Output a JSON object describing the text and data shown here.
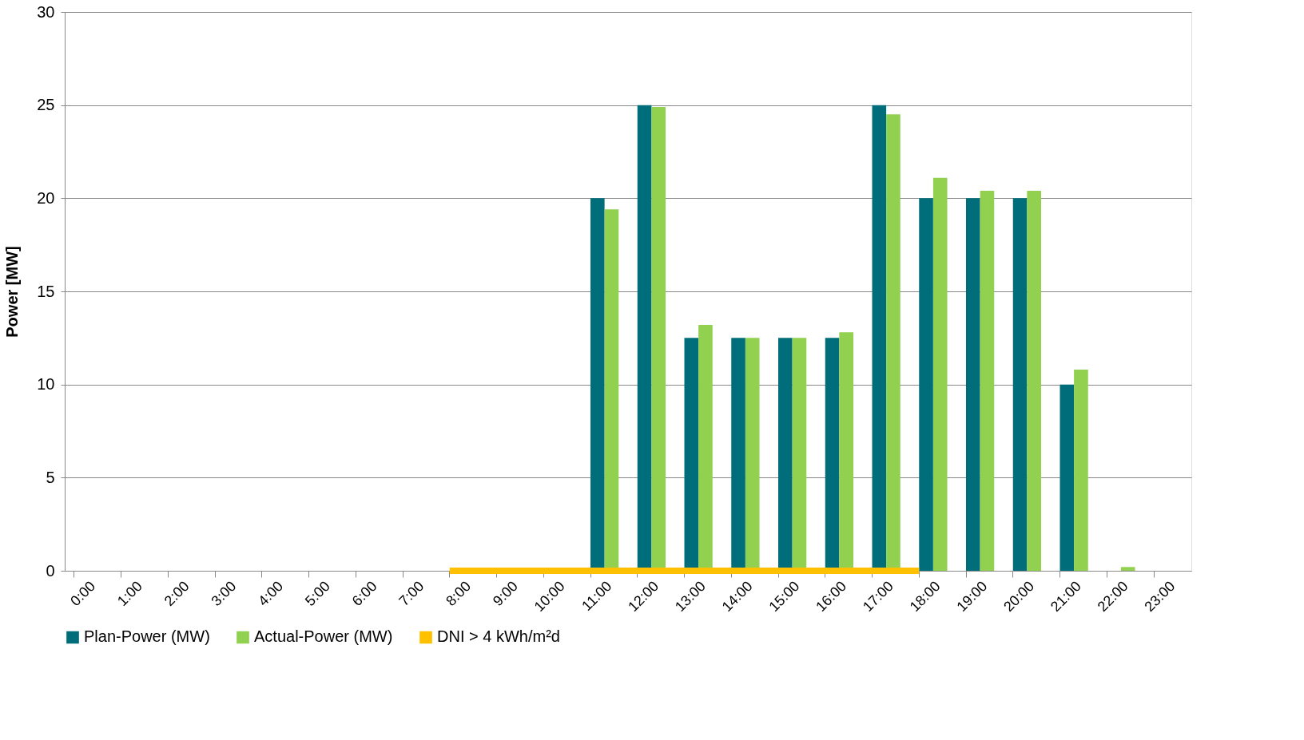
{
  "chart_data": {
    "type": "bar",
    "ylabel": "Power [MW]",
    "categories": [
      "0:00",
      "1:00",
      "2:00",
      "3:00",
      "4:00",
      "5:00",
      "6:00",
      "7:00",
      "8:00",
      "9:00",
      "10:00",
      "11:00",
      "12:00",
      "13:00",
      "14:00",
      "15:00",
      "16:00",
      "17:00",
      "18:00",
      "19:00",
      "20:00",
      "21:00",
      "22:00",
      "23:00"
    ],
    "series": [
      {
        "name": "Plan-Power (MW)",
        "color": "#006e7a",
        "values": [
          0,
          0,
          0,
          0,
          0,
          0,
          0,
          0,
          0,
          0,
          0,
          20,
          25,
          12.5,
          12.5,
          12.5,
          12.5,
          25,
          20,
          20,
          20,
          10,
          0,
          0
        ]
      },
      {
        "name": "Actual-Power (MW)",
        "color": "#92d050",
        "values": [
          0,
          0,
          0,
          0,
          0,
          0,
          0,
          0,
          0,
          0,
          0,
          19.4,
          24.9,
          13.2,
          12.5,
          12.5,
          12.8,
          24.5,
          21.1,
          20.4,
          20.4,
          10.8,
          0.2,
          0
        ]
      },
      {
        "name": "DNI > 4 kWh/m²d",
        "type": "line",
        "color": "#ffc000",
        "values": [
          null,
          null,
          null,
          null,
          null,
          null,
          null,
          null,
          0,
          0,
          0,
          0,
          0,
          0,
          0,
          0,
          0,
          0,
          0,
          null,
          null,
          null,
          null,
          null
        ]
      }
    ],
    "ylim": [
      0,
      30
    ],
    "yticks": [
      0,
      5,
      10,
      15,
      20,
      25,
      30
    ],
    "grid": "y",
    "legend": "bottom"
  }
}
